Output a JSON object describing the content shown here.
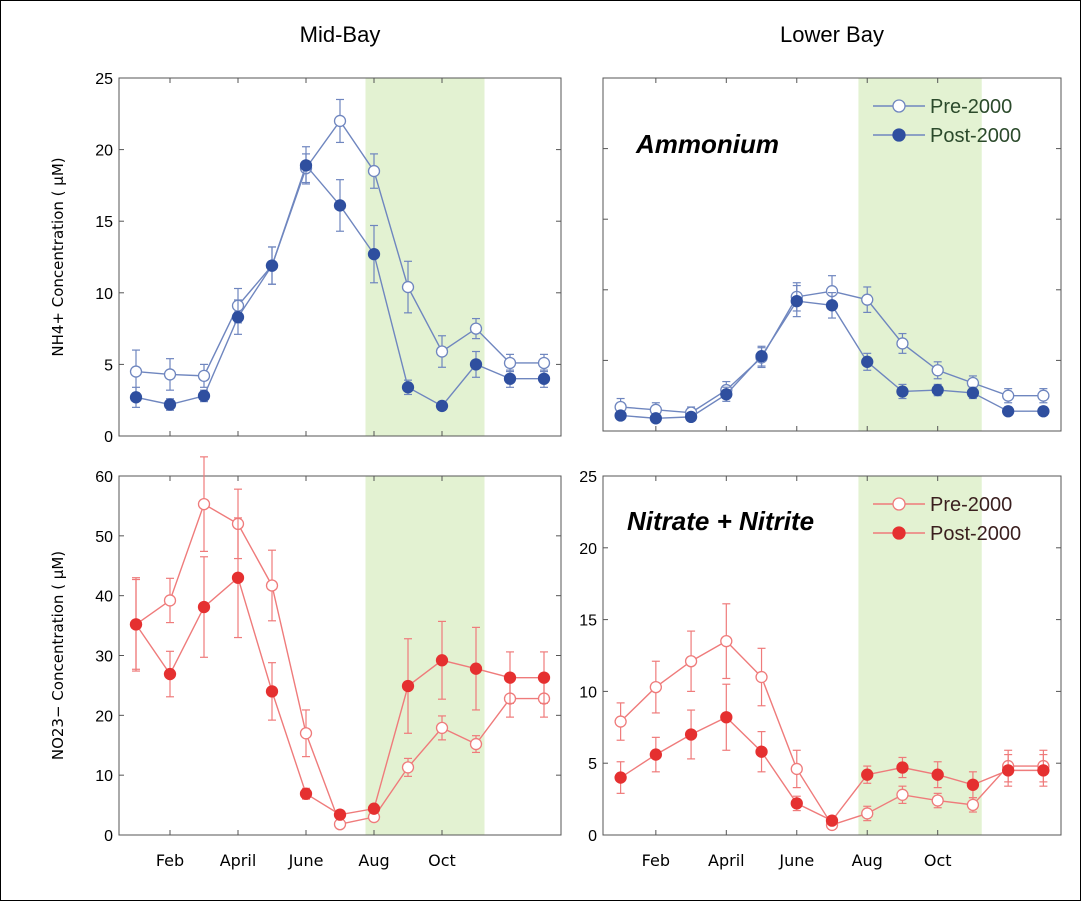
{
  "colors": {
    "ammonium_line": "#6f86bf",
    "ammonium_fill": "#2f4f9f",
    "nitrate_line": "#ef7b7b",
    "nitrate_fill": "#e53030",
    "shade": "#e3f2d2"
  },
  "chart_data": [
    {
      "type": "line",
      "panel": "top-left",
      "title": "Mid-Bay",
      "ylabel": "NH4+ Concentration ( μM)",
      "ylim": [
        0,
        25
      ],
      "yticks": [
        0,
        5,
        10,
        15,
        20,
        25
      ],
      "xlim": [
        0.5,
        13.5
      ],
      "x": [
        1,
        2,
        3,
        4,
        5,
        6,
        7,
        8,
        9,
        10,
        11,
        12,
        13
      ],
      "shade_x": [
        7.75,
        11.25
      ],
      "legend": "top-right",
      "series": [
        {
          "name": "Pre-2000",
          "marker": "open",
          "values": [
            4.5,
            4.3,
            4.2,
            9.1,
            11.9,
            18.7,
            22.0,
            18.5,
            10.4,
            5.9,
            7.5,
            5.1,
            5.1
          ],
          "err": [
            1.5,
            1.1,
            0.8,
            1.2,
            1.3,
            1.0,
            1.5,
            1.2,
            1.8,
            1.1,
            0.7,
            0.6,
            0.6
          ]
        },
        {
          "name": "Post-2000",
          "marker": "filled",
          "values": [
            2.7,
            2.2,
            2.8,
            8.3,
            11.9,
            18.9,
            16.1,
            12.7,
            3.4,
            2.1,
            5.0,
            4.0,
            4.0
          ],
          "err": [
            0.7,
            0.4,
            0.4,
            1.2,
            1.3,
            1.3,
            1.8,
            2.0,
            0.5,
            0.3,
            0.9,
            0.6,
            0.6
          ]
        }
      ]
    },
    {
      "type": "line",
      "panel": "top-right",
      "title": "Lower Bay",
      "ylim": [
        0,
        25
      ],
      "xlim": [
        0.5,
        13.5
      ],
      "x": [
        1,
        2,
        3,
        4,
        5,
        6,
        7,
        8,
        9,
        10,
        11,
        12,
        13
      ],
      "shade_x": [
        7.75,
        11.25
      ],
      "annotation": "Ammonium",
      "legend": "top-right",
      "series": [
        {
          "name": "Pre-2000",
          "marker": "open",
          "values": [
            1.7,
            1.5,
            1.3,
            2.9,
            5.2,
            9.5,
            9.9,
            9.3,
            6.2,
            4.3,
            3.4,
            2.5,
            2.5
          ],
          "err": [
            0.6,
            0.5,
            0.4,
            0.6,
            0.7,
            1.0,
            1.1,
            0.9,
            0.7,
            0.6,
            0.5,
            0.5,
            0.5
          ]
        },
        {
          "name": "Post-2000",
          "marker": "filled",
          "values": [
            1.1,
            0.9,
            1.0,
            2.6,
            5.3,
            9.2,
            8.9,
            4.9,
            2.8,
            2.9,
            2.7,
            1.4,
            1.4
          ],
          "err": [
            0.3,
            0.3,
            0.3,
            0.5,
            0.7,
            1.1,
            0.9,
            0.6,
            0.5,
            0.4,
            0.4,
            0.3,
            0.3
          ]
        }
      ]
    },
    {
      "type": "line",
      "panel": "bottom-left",
      "ylabel": "NO23− Concentration ( μM)",
      "ylim": [
        0,
        60
      ],
      "yticks": [
        0,
        10,
        20,
        30,
        40,
        50,
        60
      ],
      "xlim": [
        0.5,
        13.5
      ],
      "x": [
        1,
        2,
        3,
        4,
        5,
        6,
        7,
        8,
        9,
        10,
        11,
        12,
        13
      ],
      "xtick_positions": [
        2,
        4,
        6,
        8,
        10
      ],
      "xtick_labels": [
        "Feb",
        "April",
        "June",
        "Aug",
        "Oct"
      ],
      "shade_x": [
        7.75,
        11.25
      ],
      "legend": "top-right",
      "series": [
        {
          "name": "Pre-2000",
          "marker": "open",
          "values": [
            35.2,
            39.2,
            55.3,
            52.0,
            41.7,
            17.0,
            1.8,
            3.0,
            11.3,
            17.9,
            15.2,
            22.8,
            22.8
          ],
          "err": [
            7.8,
            3.7,
            7.9,
            5.8,
            5.9,
            3.9,
            0.5,
            0.7,
            1.5,
            2.0,
            1.4,
            3.1,
            3.1
          ]
        },
        {
          "name": "Post-2000",
          "marker": "filled",
          "values": [
            35.2,
            26.9,
            38.1,
            43.0,
            24.0,
            6.9,
            3.4,
            4.4,
            24.9,
            29.2,
            27.8,
            26.3,
            26.3
          ],
          "err": [
            7.5,
            3.8,
            8.4,
            10.0,
            4.8,
            0.9,
            0.6,
            0.6,
            7.9,
            6.5,
            6.9,
            4.3,
            4.3
          ]
        }
      ]
    },
    {
      "type": "line",
      "panel": "bottom-right",
      "ylim": [
        0,
        25
      ],
      "yticks": [
        0,
        5,
        10,
        15,
        20,
        25
      ],
      "xlim": [
        0.5,
        13.5
      ],
      "x": [
        1,
        2,
        3,
        4,
        5,
        6,
        7,
        8,
        9,
        10,
        11,
        12,
        13
      ],
      "xtick_positions": [
        2,
        4,
        6,
        8,
        10
      ],
      "xtick_labels": [
        "Feb",
        "April",
        "June",
        "Aug",
        "Oct"
      ],
      "shade_x": [
        7.75,
        11.25
      ],
      "annotation": "Nitrate + Nitrite",
      "legend": "top-right",
      "series": [
        {
          "name": "Pre-2000",
          "marker": "open",
          "values": [
            7.9,
            10.3,
            12.1,
            13.5,
            11.0,
            4.6,
            0.7,
            1.5,
            2.8,
            2.4,
            2.1,
            4.8,
            4.8
          ],
          "err": [
            1.3,
            1.8,
            2.1,
            2.6,
            2.0,
            1.3,
            0.3,
            0.5,
            0.6,
            0.5,
            0.5,
            1.1,
            1.1
          ]
        },
        {
          "name": "Post-2000",
          "marker": "filled",
          "values": [
            4.0,
            5.6,
            7.0,
            8.2,
            5.8,
            2.2,
            1.0,
            4.2,
            4.7,
            4.2,
            3.5,
            4.5,
            4.5
          ],
          "err": [
            1.1,
            1.2,
            1.7,
            2.3,
            1.4,
            0.5,
            0.2,
            0.6,
            0.7,
            0.9,
            0.9,
            1.1,
            1.1
          ]
        }
      ]
    }
  ]
}
